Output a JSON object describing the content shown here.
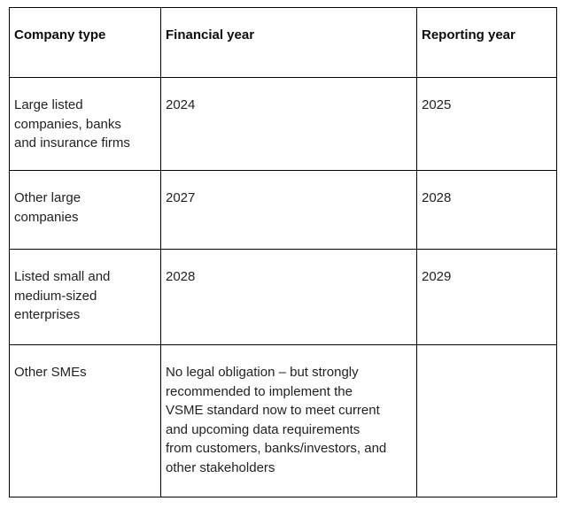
{
  "page": {
    "background_color": "#ffffff",
    "border_color": "#000000",
    "header_text_color": "#0d0d0d",
    "body_text_color": "#222222"
  },
  "table": {
    "headers": [
      "Company type",
      "Financial year",
      "Reporting year"
    ],
    "rows": [
      [
        "Large listed\ncompanies, banks\nand insurance firms",
        "2024",
        "2025"
      ],
      [
        "Other large\ncompanies",
        "2027",
        "2028"
      ],
      [
        "Listed small and\nmedium-sized\nenterprises",
        "2028",
        "2029"
      ],
      [
        "Other SMEs",
        "No legal obligation – but strongly\nrecommended to implement the\nVSME standard now to meet current\nand upcoming data requirements\nfrom customers, banks/investors, and\nother stakeholders",
        ""
      ]
    ]
  }
}
